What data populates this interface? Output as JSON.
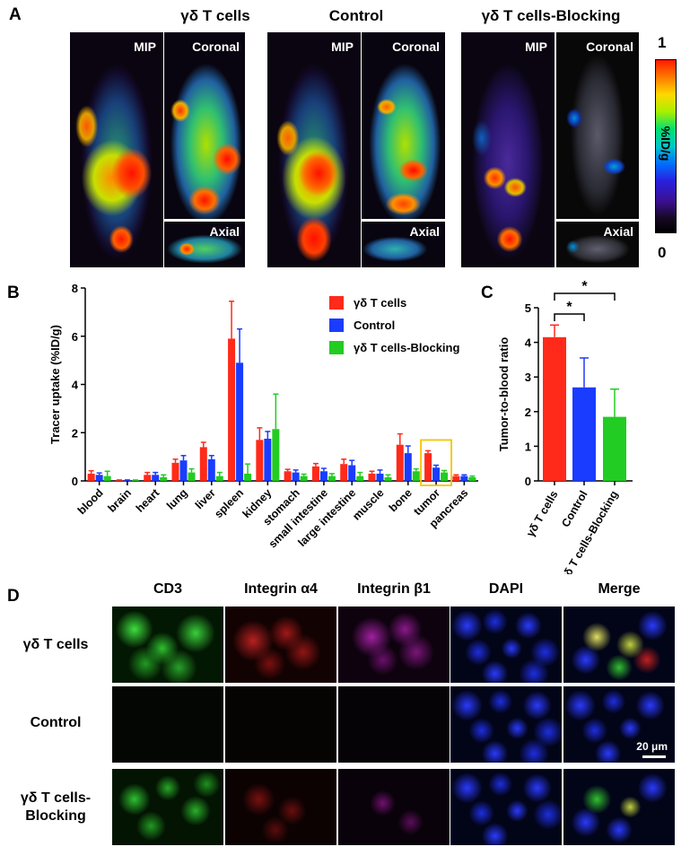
{
  "panels": {
    "a": "A",
    "b": "B",
    "c": "C",
    "d": "D"
  },
  "pet": {
    "groups": [
      "γδ T cells",
      "Control",
      "γδ T cells-Blocking"
    ],
    "view_labels": {
      "mip": "MIP",
      "coronal": "Coronal",
      "axial": "Axial"
    },
    "colorbar": {
      "max": "1",
      "min": "0",
      "unit": "%ID/g"
    }
  },
  "chart_b": {
    "type": "bar",
    "ylabel": "Tracer uptake (%ID/g)",
    "ylim": [
      0,
      8
    ],
    "yticks": [
      "0",
      "2",
      "4",
      "6",
      "8"
    ],
    "categories": [
      "blood",
      "brain",
      "heart",
      "lung",
      "liver",
      "spleen",
      "kidney",
      "stomach",
      "small intestine",
      "large intestine",
      "muscle",
      "bone",
      "tumor",
      "pancreas"
    ],
    "series": [
      {
        "name": "γδ T cells",
        "color": "#ff2a1a",
        "values": [
          0.3,
          0.02,
          0.25,
          0.75,
          1.4,
          5.9,
          1.7,
          0.4,
          0.6,
          0.7,
          0.3,
          1.5,
          1.15,
          0.2
        ],
        "err": [
          0.12,
          0.02,
          0.1,
          0.15,
          0.2,
          1.55,
          0.5,
          0.08,
          0.12,
          0.2,
          0.1,
          0.45,
          0.1,
          0.05
        ]
      },
      {
        "name": "Control",
        "color": "#1a3cff",
        "values": [
          0.25,
          0.02,
          0.25,
          0.85,
          0.9,
          4.9,
          1.75,
          0.35,
          0.4,
          0.65,
          0.3,
          1.15,
          0.55,
          0.2
        ],
        "err": [
          0.08,
          0.02,
          0.1,
          0.2,
          0.15,
          1.4,
          0.3,
          0.1,
          0.12,
          0.2,
          0.15,
          0.3,
          0.1,
          0.05
        ]
      },
      {
        "name": "γδ T cells-Blocking",
        "color": "#22cc22",
        "values": [
          0.2,
          0.02,
          0.15,
          0.35,
          0.2,
          0.3,
          2.15,
          0.2,
          0.2,
          0.2,
          0.15,
          0.4,
          0.35,
          0.15
        ],
        "err": [
          0.2,
          0.02,
          0.1,
          0.15,
          0.15,
          0.4,
          1.45,
          0.08,
          0.1,
          0.15,
          0.1,
          0.1,
          0.08,
          0.05
        ]
      }
    ],
    "highlight": "tumor",
    "highlight_color": "#f5c400"
  },
  "chart_c": {
    "type": "bar",
    "ylabel": "Tumor-to-blood ratio",
    "ylim": [
      0,
      5
    ],
    "yticks": [
      "0",
      "1",
      "2",
      "3",
      "4",
      "5"
    ],
    "categories": [
      "γδ T cells",
      "Control",
      "γδ T cells-Blocking"
    ],
    "values": [
      4.15,
      2.7,
      1.85
    ],
    "err": [
      0.35,
      0.85,
      0.8
    ],
    "colors": [
      "#ff2a1a",
      "#1a3cff",
      "#22cc22"
    ],
    "significance": [
      "*",
      "*"
    ]
  },
  "microscopy": {
    "channels": [
      "CD3",
      "Integrin α4",
      "Integrin β1",
      "DAPI",
      "Merge"
    ],
    "rows": [
      {
        "line1": "γδ T cells",
        "line2": ""
      },
      {
        "line1": "Control",
        "line2": ""
      },
      {
        "line1": "γδ T cells-",
        "line2": "Blocking"
      }
    ],
    "scale_bar": "20 μm"
  }
}
